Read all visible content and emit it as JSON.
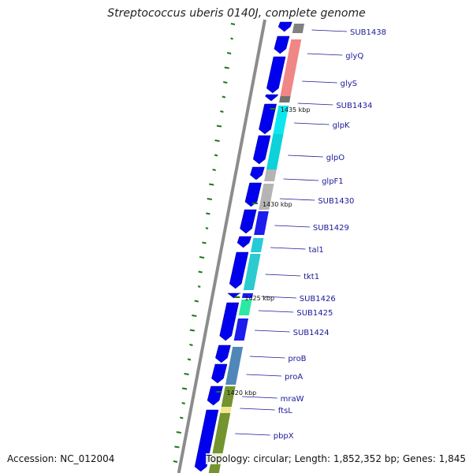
{
  "title": "Streptococcus uberis 0140J, complete genome",
  "footer": {
    "accession": "Accession: NC_012004",
    "topology": "Topology: circular; Length: 1,852,352 bp; Genes: 1,845"
  },
  "colors": {
    "backbone": "#8c8c8c",
    "cds": "#0000ee",
    "gc_skew": "#1a7a1a",
    "label": "#1a1a99"
  },
  "position_markers": [
    "1435 kbp",
    "1430 kbp",
    "1425 kbp",
    "1420 kbp"
  ],
  "genes": [
    {
      "label": "SUB1438",
      "color": "#7a7a7a"
    },
    {
      "label": "glyQ",
      "color": "#f08080"
    },
    {
      "label": "glyS",
      "color": "#f08080"
    },
    {
      "label": "SUB1434",
      "color": "#6a6a6a"
    },
    {
      "label": "glpK",
      "color": "#00e5ee"
    },
    {
      "label": "glpO",
      "color": "#00d0d8"
    },
    {
      "label": "glpF1",
      "color": "#b0b0b0"
    },
    {
      "label": "SUB1430",
      "color": "#b0b0b0"
    },
    {
      "label": "SUB1429",
      "color": "#1010ee"
    },
    {
      "label": "tal1",
      "color": "#18c8d4"
    },
    {
      "label": "tkt1",
      "color": "#20c8cc"
    },
    {
      "label": "SUB1426",
      "color": "#1010ee"
    },
    {
      "label": "SUB1425",
      "color": "#20e8a0"
    },
    {
      "label": "SUB1424",
      "color": "#1010ee"
    },
    {
      "label": "proB",
      "color": "#4682b4"
    },
    {
      "label": "proA",
      "color": "#4682b4"
    },
    {
      "label": "mraW",
      "color": "#6b8e23"
    },
    {
      "label": "ftsL",
      "color": "#f0e68c"
    },
    {
      "label": "pbpX",
      "color": "#6b8e23"
    }
  ]
}
